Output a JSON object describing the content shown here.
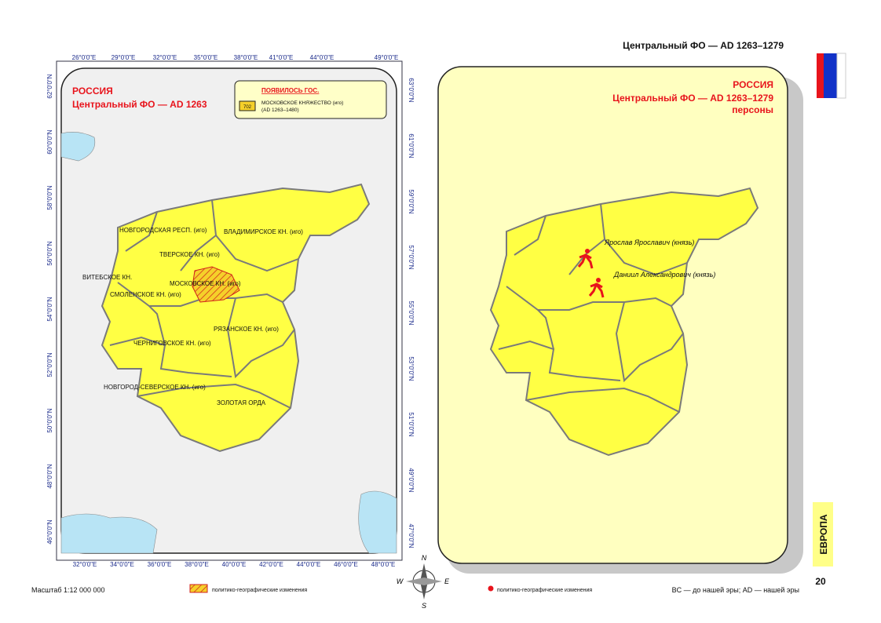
{
  "header": {
    "title": "Центральный ФО — AD 1263–1279"
  },
  "left_map": {
    "title": [
      "РОССИЯ",
      "Центральный ФО — AD 1263"
    ],
    "legend": {
      "heading": "ПОЯВИЛОСЬ ГОС.",
      "code": "702",
      "name": "МОСКОВСКОЕ КНЯЖЕСТВО (иго)",
      "period": "(AD 1263–1480)"
    },
    "regions": [
      "НОВГОРОДСКАЯ РЕСП. (иго)",
      "ВЛАДИМИРСКОЕ КН. (иго)",
      "ТВЕРСКОЕ КН. (иго)",
      "ВИТЕБСКОЕ КН.",
      "МОСКОВСКОЕ КН. (иго)",
      "СМОЛЕНСКОЕ КН. (иго)",
      "РЯЗАНСКОЕ КН. (иго)",
      "ЧЕРНИГОВСКОЕ КН. (иго)",
      "НОВГОРОД-СЕВЕРСКОЕ КН. (иго)",
      "ЗОЛОТАЯ ОРДА"
    ],
    "top_axis": [
      "26°0'0\"E",
      "29°0'0\"E",
      "32°0'0\"E",
      "35°0'0\"E",
      "38°0'0\"E",
      "41°0'0\"E",
      "44°0'0\"E",
      "49°0'0\"E"
    ],
    "bottom_axis": [
      "32°0'0\"E",
      "34°0'0\"E",
      "36°0'0\"E",
      "38°0'0\"E",
      "40°0'0\"E",
      "42°0'0\"E",
      "44°0'0\"E",
      "46°0'0\"E",
      "48°0'0\"E"
    ],
    "left_axis": [
      "62°0'0\"N",
      "60°0'0\"N",
      "58°0'0\"N",
      "56°0'0\"N",
      "54°0'0\"N",
      "52°0'0\"N",
      "50°0'0\"N",
      "48°0'0\"N",
      "46°0'0\"N"
    ],
    "right_axis": [
      "63°0'0\"N",
      "61°0'0\"N",
      "59°0'0\"N",
      "57°0'0\"N",
      "55°0'0\"N",
      "53°0'0\"N",
      "51°0'0\"N",
      "49°0'0\"N",
      "47°0'0\"N"
    ]
  },
  "right_map": {
    "title": [
      "РОССИЯ",
      "Центральный ФО — AD 1263–1279",
      "персоны"
    ],
    "persons": [
      "Ярослав Ярославич (князь)",
      "Даниил Александрович (князь)"
    ]
  },
  "compass": [
    "N",
    "W",
    "E",
    "S"
  ],
  "footer": {
    "scale": "Масштаб 1:12 000 000",
    "left_legend": "политико-географические изменения",
    "right_legend": "политико-географические изменения",
    "note": "BC — до нашей эры; AD — нашей эры",
    "section": "ЕВРОПА",
    "page": "20"
  }
}
